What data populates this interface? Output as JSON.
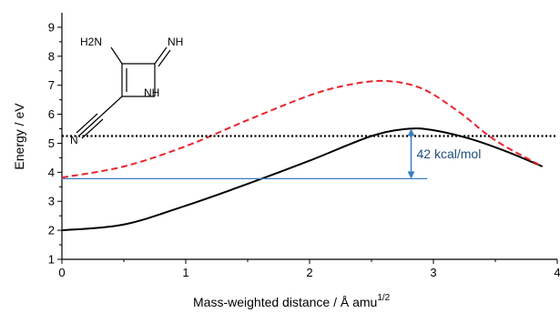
{
  "chart_data": {
    "type": "line",
    "xlabel": "Mass-weighted distance / Å amu",
    "xlabel_superscript": "1/2",
    "ylabel": "Energy / eV",
    "xlim": [
      0,
      4
    ],
    "ylim": [
      1,
      9.5
    ],
    "x_ticks": [
      0,
      1,
      2,
      3,
      4
    ],
    "y_ticks": [
      1,
      2,
      3,
      4,
      5,
      6,
      7,
      8,
      9
    ],
    "grid": false,
    "legend": "none",
    "series": [
      {
        "style": "solid",
        "color": "#000000",
        "x": [
          0,
          0.5,
          1.0,
          1.5,
          2.0,
          2.5,
          2.8,
          3.0,
          3.3,
          3.6,
          3.88
        ],
        "y": [
          2.0,
          2.2,
          2.85,
          3.6,
          4.4,
          5.25,
          5.5,
          5.45,
          5.15,
          4.7,
          4.2
        ]
      },
      {
        "style": "dashed",
        "color": "#e8242b",
        "x": [
          0,
          0.5,
          1.0,
          1.5,
          2.0,
          2.3,
          2.6,
          2.9,
          3.2,
          3.5,
          3.88
        ],
        "y": [
          3.82,
          4.2,
          4.9,
          5.8,
          6.65,
          7.0,
          7.15,
          6.9,
          6.1,
          5.1,
          4.2
        ]
      },
      {
        "style": "dotted",
        "color": "#000000",
        "x": [
          0,
          4
        ],
        "y": [
          5.25,
          5.25
        ]
      },
      {
        "style": "solid",
        "color": "#3c7dbd",
        "x": [
          0,
          2.95
        ],
        "y": [
          3.78,
          3.78
        ]
      }
    ],
    "annotations": [
      {
        "text": "42 kcal/mol",
        "arrow_x": 2.82,
        "y_from": 3.78,
        "y_to": 5.5,
        "color": "#3c7dbd"
      }
    ]
  },
  "molecule": {
    "labels": [
      "H2N",
      "NH",
      "NH",
      "N"
    ]
  }
}
